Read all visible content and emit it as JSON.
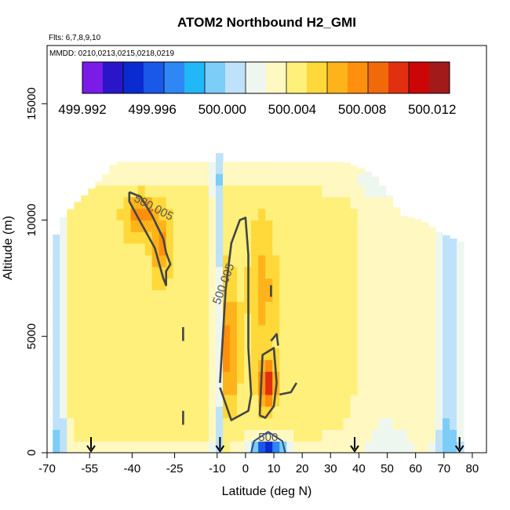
{
  "chart_data": {
    "type": "heatmap",
    "title": "ATOM2 Northbound H2_GMI",
    "flights_text": "Flts: 6,7,8,9,10",
    "dates_text": "MMDD: 0210,0213,0215,0218,0219",
    "xlabel": "Latitude (deg N)",
    "ylabel": "Altitude (m)",
    "xlim": [
      -70,
      85
    ],
    "ylim": [
      0,
      17500
    ],
    "x_ticks": [
      -70,
      -55,
      -40,
      -25,
      -10,
      0,
      10,
      20,
      30,
      40,
      50,
      60,
      70,
      80
    ],
    "y_ticks": [
      0,
      5000,
      10000,
      15000
    ],
    "colorbar": {
      "min": 499.992,
      "max": 500.013,
      "tick_values": [
        499.992,
        499.996,
        500.0,
        500.004,
        500.008,
        500.012
      ],
      "tick_labels": [
        "499.992",
        "499.996",
        "500.000",
        "500.004",
        "500.008",
        "500.012"
      ],
      "colors": [
        "#7a1be8",
        "#2a16c8",
        "#0a2bd0",
        "#1a58e8",
        "#2f86f5",
        "#22b8f8",
        "#7ccdf8",
        "#bfe2fb",
        "#eef7ef",
        "#fff8c0",
        "#fff07c",
        "#ffd83a",
        "#ffb31a",
        "#ff8f0c",
        "#f06a0a",
        "#e03010",
        "#cc0606",
        "#a21a1a"
      ]
    },
    "vertical_profile_latitudes": [
      -54.5,
      -9,
      38.5,
      75.5
    ],
    "contour_labels": [
      {
        "text": "500.005",
        "lat": -33,
        "alt": 10400,
        "angle": 28
      },
      {
        "text": "500.005",
        "lat": -6.5,
        "alt": 7200,
        "angle": -70
      },
      {
        "text": "500",
        "lat": 8,
        "alt": 500,
        "angle": 0
      }
    ],
    "field": {
      "lat_bounds": [
        -68,
        77
      ],
      "alt_extent": [
        [
          -68,
          9000
        ],
        [
          -64,
          10200
        ],
        [
          -59,
          10800
        ],
        [
          -53,
          11500
        ],
        [
          -49,
          12000
        ],
        [
          -46,
          12500
        ],
        [
          -10,
          12500
        ],
        [
          -9,
          13000
        ],
        [
          -8,
          12500
        ],
        [
          35,
          12500
        ],
        [
          45,
          12000
        ],
        [
          50,
          11200
        ],
        [
          55,
          10200
        ],
        [
          62,
          10000
        ],
        [
          68,
          9500
        ],
        [
          77,
          9000
        ]
      ],
      "hot_spots": [
        {
          "lat": -38,
          "alt": 10500,
          "value": 500.01
        },
        {
          "lat": -30,
          "alt": 9200,
          "value": 500.008
        },
        {
          "lat": -7,
          "alt": 4500,
          "value": 500.008
        },
        {
          "lat": 8,
          "alt": 3000,
          "value": 500.011
        },
        {
          "lat": 5,
          "alt": 8000,
          "value": 500.005
        }
      ],
      "cold_spots": [
        {
          "lat": -10,
          "alt": 6000,
          "value": 499.999
        },
        {
          "lat": 8,
          "alt": 300,
          "value": 499.992
        },
        {
          "lat": 70,
          "alt": 3000,
          "value": 499.999
        },
        {
          "lat": -66,
          "alt": 3000,
          "value": 500.0
        }
      ]
    }
  }
}
